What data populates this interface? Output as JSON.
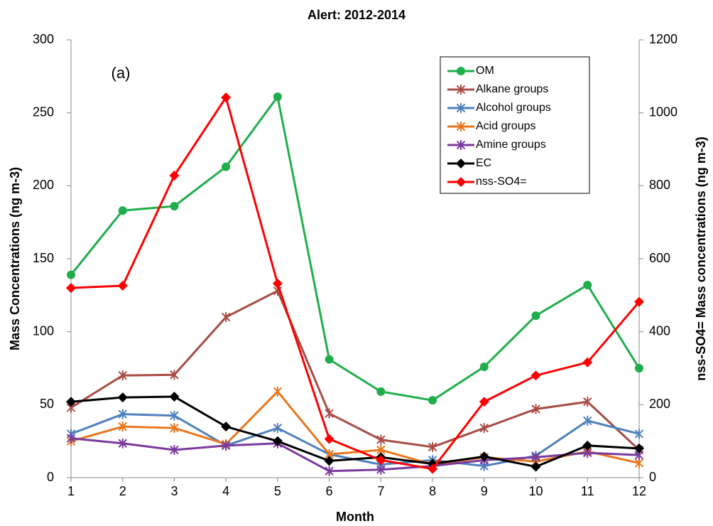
{
  "chart_data": {
    "type": "line",
    "title": "Alert: 2012-2014",
    "xlabel": "Month",
    "ylabel": "Mass Concentrations (ng m-3)",
    "y2label": "nss-SO4= Mass concentrations (ng m-3)",
    "annotation": "(a)",
    "x": [
      1,
      2,
      3,
      4,
      5,
      6,
      7,
      8,
      9,
      10,
      11,
      12
    ],
    "xlim": [
      1,
      12
    ],
    "xticks": [
      1,
      2,
      3,
      4,
      5,
      6,
      7,
      8,
      9,
      10,
      11,
      12
    ],
    "ylim": [
      0,
      300
    ],
    "yticks": [
      0,
      50,
      100,
      150,
      200,
      250,
      300
    ],
    "y2lim": [
      0,
      1200
    ],
    "y2ticks": [
      0,
      200,
      400,
      600,
      800,
      1000,
      1200
    ],
    "grid": false,
    "legend": "upper right",
    "series": [
      {
        "name": "OM",
        "color": "#1fae4b",
        "marker": "circle",
        "values": [
          139,
          183,
          186,
          213,
          261,
          81,
          59,
          53,
          76,
          111,
          132,
          75
        ]
      },
      {
        "name": "Alkane groups",
        "color": "#a84c45",
        "marker": "star",
        "values": [
          48,
          70,
          70.5,
          110,
          128,
          44,
          26,
          21,
          34,
          47,
          52,
          19
        ]
      },
      {
        "name": "Alcohol groups",
        "color": "#4f81bd",
        "marker": "star",
        "values": [
          30,
          43.5,
          42.5,
          22,
          34,
          16,
          9,
          12,
          8,
          15,
          39,
          30
        ]
      },
      {
        "name": "Acid groups",
        "color": "#e9761c",
        "marker": "star",
        "values": [
          25,
          35,
          34,
          23,
          59,
          16,
          19,
          9,
          14,
          11,
          18,
          10
        ]
      },
      {
        "name": "Amine groups",
        "color": "#7a3a9e",
        "marker": "star",
        "values": [
          27,
          23.5,
          19,
          22,
          23.5,
          4.5,
          5.5,
          8,
          12,
          14,
          17,
          15.5
        ]
      },
      {
        "name": "EC",
        "color": "#000000",
        "marker": "diamond",
        "values": [
          52,
          55,
          55.5,
          35,
          25,
          11.5,
          14,
          9.5,
          14.5,
          7.5,
          22,
          20
        ]
      },
      {
        "name": "nss-SO4=",
        "color": "#ff0000",
        "marker": "diamond",
        "axis": "y2",
        "values": [
          520,
          526,
          828,
          1042,
          532,
          106,
          48,
          24,
          208,
          280,
          316,
          482
        ]
      }
    ]
  }
}
